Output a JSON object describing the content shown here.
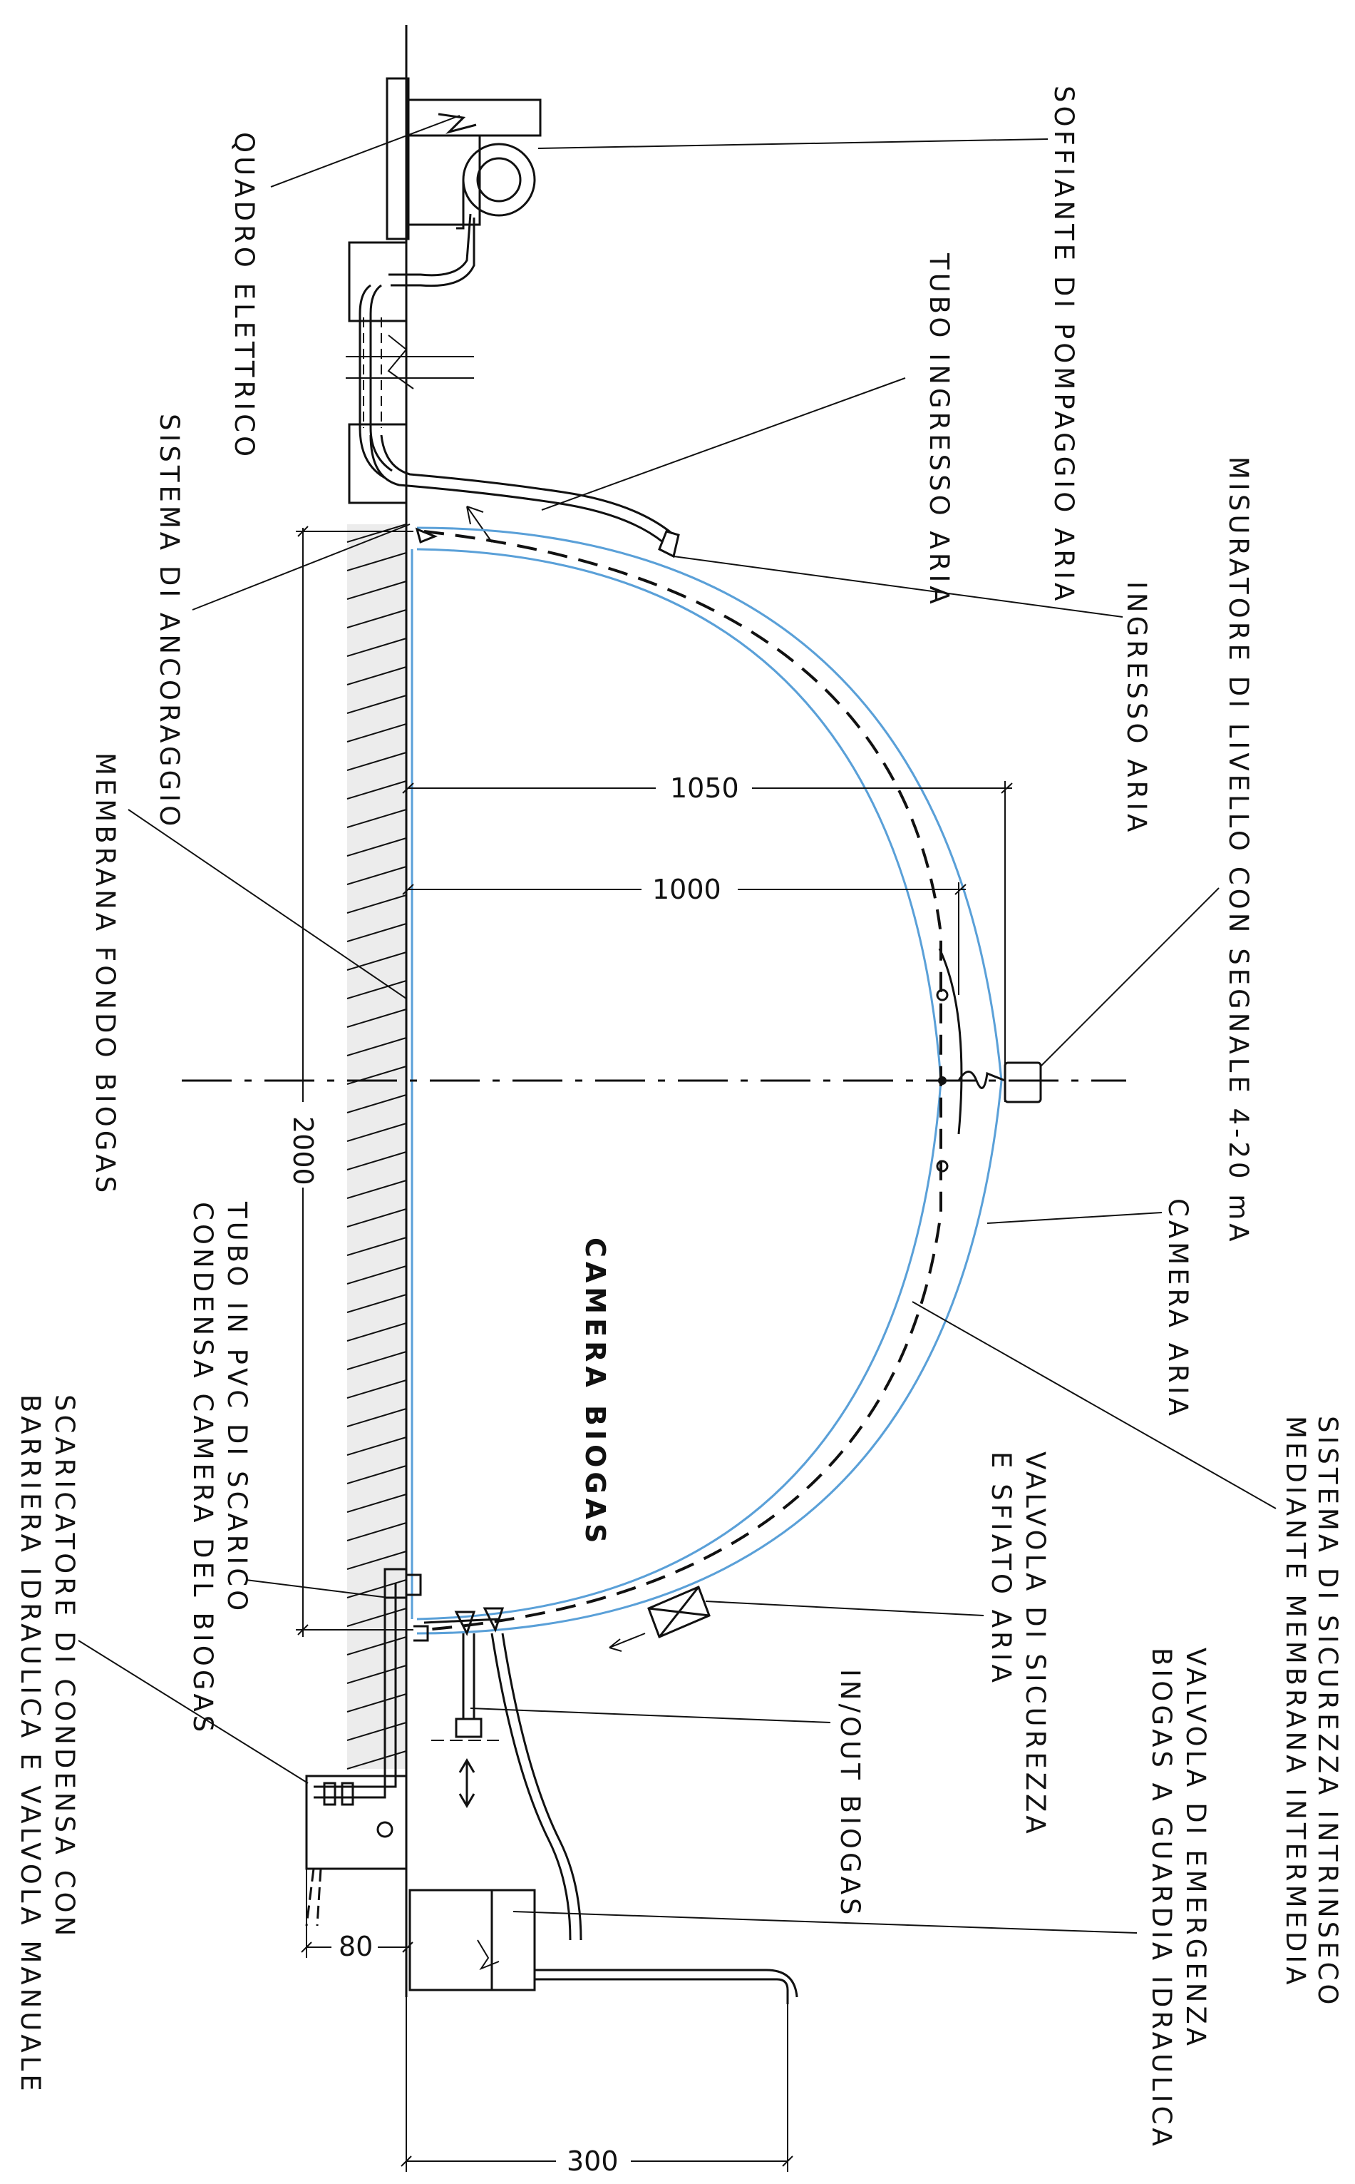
{
  "labels": {
    "soffiante": "SOFFIANTE DI POMPAGGIO ARIA",
    "quadro": "QUADRO ELETTRICO",
    "tubo_ingresso": "TUBO INGRESSO ARIA",
    "ancoraggio": "SISTEMA DI ANCORAGGIO",
    "ingresso_aria": "INGRESSO ARIA",
    "misuratore": "MISURATORE DI LIVELLO CON SEGNALE 4-20 mA",
    "membrana_fondo": "MEMBRANA FONDO BIOGAS",
    "camera_aria": "CAMERA ARIA",
    "camera_biogas": "CAMERA BIOGAS",
    "sicurezza_line1": "SISTEMA DI SICUREZZA INTRINSECO",
    "sicurezza_line2": "MEDIANTE MEMBRANA INTERMEDIA",
    "tubo_pvc_line1": "TUBO IN PVC DI SCARICO",
    "tubo_pvc_line2": "CONDENSA CAMERA DEL BIOGAS",
    "valvola_sfiato_line1": "VALVOLA DI SICUREZZA",
    "valvola_sfiato_line2": "E SFIATO ARIA",
    "emergenza_line1": "VALVOLA DI EMERGENZA",
    "emergenza_line2": "BIOGAS A GUARDIA IDRAULICA",
    "inout": "IN/OUT BIOGAS",
    "scaricatore_line1": "SCARICATORE DI CONDENSA CON",
    "scaricatore_line2": "BARRIERA IDRAULICA E VALVOLA MANUALE"
  },
  "dimensions": {
    "radius_outer": "1050",
    "radius_inner": "1000",
    "diameter": "2000",
    "offset": "80",
    "tank_width": "300"
  },
  "colors": {
    "line": "#111111",
    "air_membrane": "#5aa0d8"
  }
}
